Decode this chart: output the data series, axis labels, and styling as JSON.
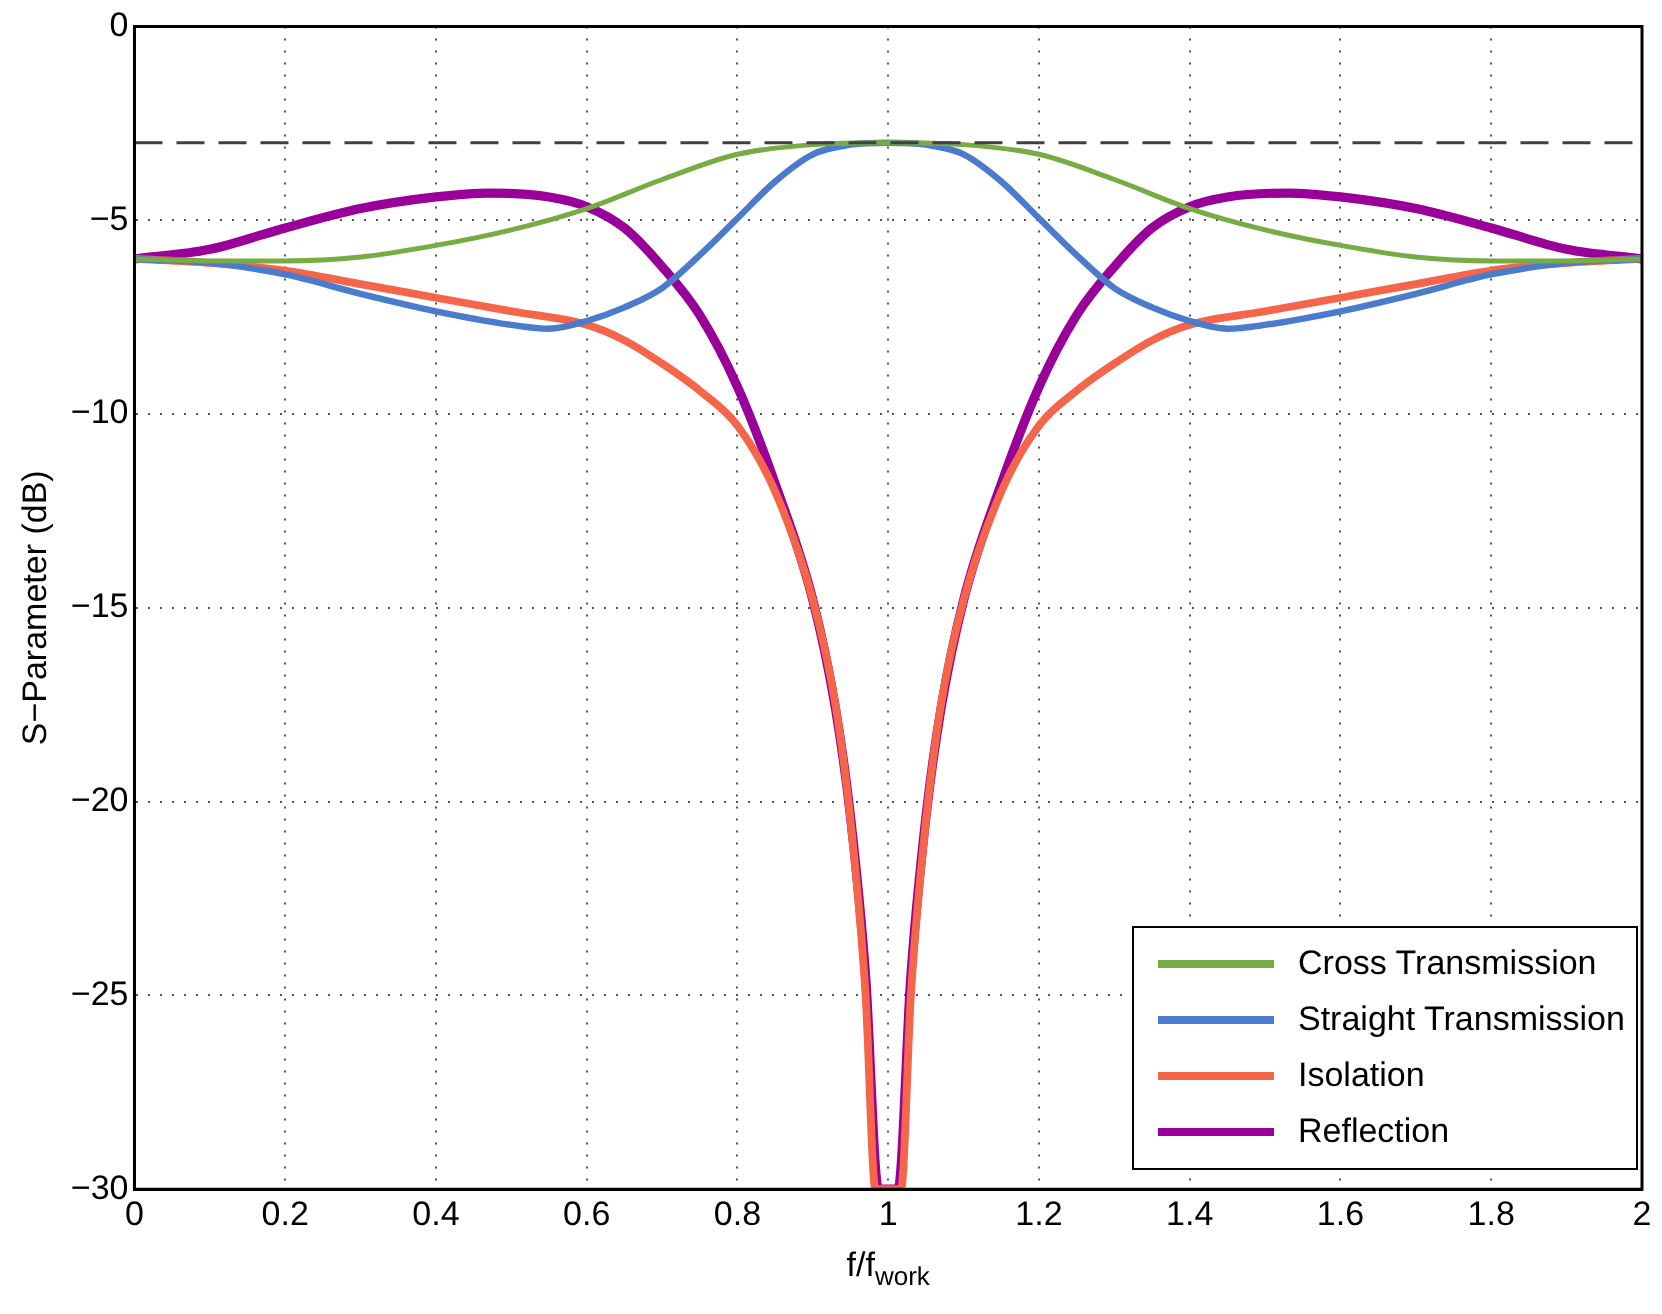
{
  "chart_data": {
    "type": "line",
    "xlabel": "f/f$_{work}$",
    "ylabel": "S−Parameter (dB)",
    "xlim": [
      0,
      2
    ],
    "xticks": [
      0,
      0.2,
      0.4,
      0.6,
      0.8,
      1,
      1.2,
      1.4,
      1.6,
      1.8,
      2
    ],
    "ylim": [
      -30,
      0
    ],
    "yticks": [
      -30,
      -25,
      -20,
      -15,
      -10,
      -5,
      0
    ],
    "grid": true,
    "legend": "bottom right",
    "marker": "none",
    "line_style": "solid",
    "ref_lines": [
      {
        "axis": "y",
        "value": -3,
        "color": "#404040",
        "line_style": "dashed"
      }
    ],
    "series": [
      {
        "name": "Cross Transmission",
        "color": "#77ab43",
        "x": [
          0,
          0.1,
          0.2,
          0.3,
          0.4,
          0.5,
          0.6,
          0.7,
          0.8,
          0.9,
          1,
          1.1,
          1.2,
          1.3,
          1.4,
          1.5,
          1.6,
          1.7,
          1.8,
          1.9,
          2
        ],
        "values": [
          -6,
          -6.05,
          -6.05,
          -5.95,
          -5.65,
          -5.25,
          -4.7,
          -3.95,
          -3.3,
          -3.05,
          -3,
          -3.05,
          -3.3,
          -3.95,
          -4.7,
          -5.25,
          -5.65,
          -5.95,
          -6.05,
          -6.05,
          -6
        ]
      },
      {
        "name": "Straight Transmission",
        "color": "#4a7bcc",
        "x": [
          0,
          0.1,
          0.2,
          0.3,
          0.4,
          0.5,
          0.55,
          0.6,
          0.65,
          0.7,
          0.75,
          0.8,
          0.85,
          0.9,
          0.95,
          1,
          1.05,
          1.1,
          1.15,
          1.2,
          1.25,
          1.3,
          1.35,
          1.4,
          1.45,
          1.5,
          1.6,
          1.7,
          1.8,
          1.9,
          2
        ],
        "values": [
          -6,
          -6.1,
          -6.4,
          -6.9,
          -7.35,
          -7.7,
          -7.8,
          -7.6,
          -7.25,
          -6.75,
          -5.9,
          -4.95,
          -4.0,
          -3.3,
          -3.05,
          -3,
          -3.05,
          -3.3,
          -4.0,
          -4.95,
          -5.9,
          -6.75,
          -7.25,
          -7.6,
          -7.8,
          -7.7,
          -7.35,
          -6.9,
          -6.4,
          -6.1,
          -6
        ]
      },
      {
        "name": "Isolation",
        "color": "#f4654a",
        "x": [
          0,
          0.1,
          0.2,
          0.3,
          0.4,
          0.5,
          0.6,
          0.65,
          0.7,
          0.75,
          0.8,
          0.85,
          0.9,
          0.93,
          0.95,
          0.97,
          0.983,
          1.017,
          1.03,
          1.05,
          1.07,
          1.1,
          1.15,
          1.2,
          1.25,
          1.3,
          1.35,
          1.4,
          1.5,
          1.6,
          1.7,
          1.8,
          1.9,
          2
        ],
        "values": [
          -6,
          -6.1,
          -6.3,
          -6.65,
          -7.0,
          -7.35,
          -7.7,
          -8.1,
          -8.7,
          -9.4,
          -10.3,
          -12.0,
          -14.8,
          -17.5,
          -20.5,
          -25,
          -30,
          -30,
          -25,
          -20.5,
          -17.5,
          -14.8,
          -12.0,
          -10.3,
          -9.4,
          -8.7,
          -8.1,
          -7.7,
          -7.35,
          -7.0,
          -6.65,
          -6.3,
          -6.1,
          -6
        ]
      },
      {
        "name": "Reflection",
        "color": "#990099",
        "x": [
          0,
          0.1,
          0.2,
          0.3,
          0.4,
          0.47,
          0.55,
          0.6,
          0.65,
          0.7,
          0.75,
          0.8,
          0.85,
          0.9,
          0.93,
          0.95,
          0.97,
          0.987,
          1.013,
          1.03,
          1.05,
          1.07,
          1.1,
          1.15,
          1.2,
          1.25,
          1.3,
          1.35,
          1.4,
          1.45,
          1.53,
          1.6,
          1.7,
          1.8,
          1.9,
          2
        ],
        "values": [
          -6,
          -5.75,
          -5.2,
          -4.7,
          -4.4,
          -4.3,
          -4.4,
          -4.65,
          -5.2,
          -6.2,
          -7.45,
          -9.3,
          -11.8,
          -14.8,
          -17.6,
          -20.4,
          -24.5,
          -30,
          -30,
          -24.5,
          -20.4,
          -17.6,
          -14.8,
          -11.8,
          -9.3,
          -7.45,
          -6.2,
          -5.2,
          -4.65,
          -4.4,
          -4.3,
          -4.4,
          -4.7,
          -5.2,
          -5.75,
          -6
        ]
      }
    ]
  }
}
